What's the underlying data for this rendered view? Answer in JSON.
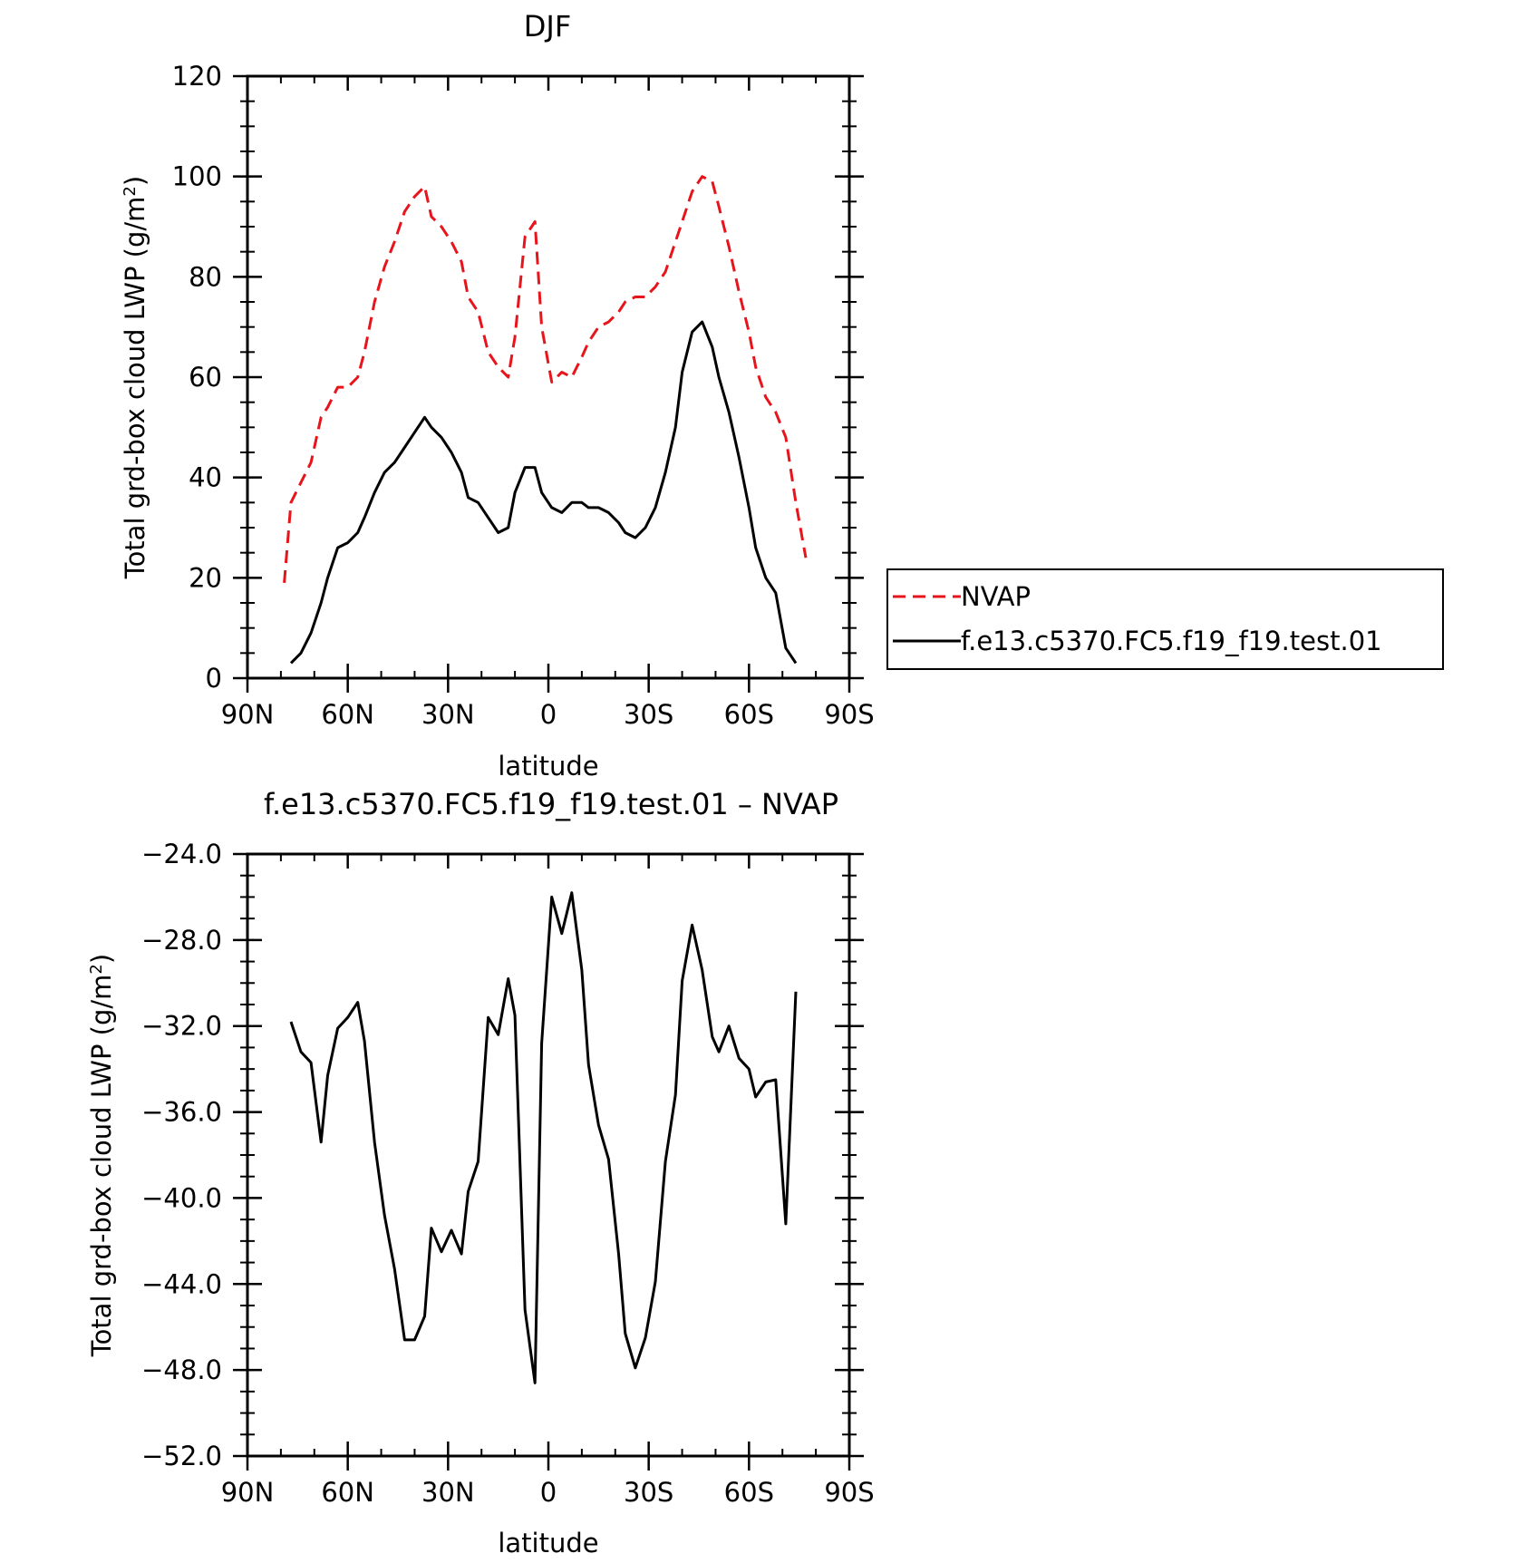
{
  "chart_data": [
    {
      "type": "line",
      "title": "DJF",
      "xlabel": "latitude",
      "ylabel": "Total grd-box cloud LWP (g/m",
      "ylabel_sup": "2",
      "ylabel_close": ")",
      "xlim": [
        -90,
        90
      ],
      "ylim": [
        0,
        120
      ],
      "x_ticks": [
        -90,
        -60,
        -30,
        0,
        30,
        60,
        90
      ],
      "x_tick_labels": [
        "90N",
        "60N",
        "30N",
        "0",
        "30S",
        "60S",
        "90S"
      ],
      "y_ticks": [
        0,
        20,
        40,
        60,
        80,
        100,
        120
      ],
      "y_tick_labels": [
        "0",
        "20",
        "40",
        "60",
        "80",
        "100",
        "120"
      ],
      "legend": "right",
      "series": [
        {
          "name": "NVAP",
          "color": "#e8141b",
          "dash": "dashed",
          "points": [
            [
              -79,
              19
            ],
            [
              -77,
              35
            ],
            [
              -74,
              39
            ],
            [
              -71,
              43
            ],
            [
              -68,
              52
            ],
            [
              -66,
              54
            ],
            [
              -63,
              58
            ],
            [
              -60,
              58
            ],
            [
              -57,
              60
            ],
            [
              -55,
              65
            ],
            [
              -52,
              75
            ],
            [
              -49,
              82
            ],
            [
              -46,
              87
            ],
            [
              -43,
              93
            ],
            [
              -40,
              96
            ],
            [
              -37,
              98
            ],
            [
              -35,
              92
            ],
            [
              -32,
              90
            ],
            [
              -29,
              87
            ],
            [
              -26,
              83
            ],
            [
              -24,
              76
            ],
            [
              -21,
              73
            ],
            [
              -18,
              65
            ],
            [
              -15,
              62
            ],
            [
              -12,
              60
            ],
            [
              -10,
              68
            ],
            [
              -7,
              88
            ],
            [
              -4,
              91
            ],
            [
              -2,
              70
            ],
            [
              1,
              59
            ],
            [
              4,
              61
            ],
            [
              7,
              60
            ],
            [
              10,
              64
            ],
            [
              12,
              67
            ],
            [
              15,
              70
            ],
            [
              18,
              71
            ],
            [
              21,
              73
            ],
            [
              23,
              75
            ],
            [
              26,
              76
            ],
            [
              29,
              76
            ],
            [
              32,
              78
            ],
            [
              35,
              81
            ],
            [
              38,
              87
            ],
            [
              40,
              91
            ],
            [
              43,
              97
            ],
            [
              46,
              100
            ],
            [
              49,
              99
            ],
            [
              51,
              94
            ],
            [
              54,
              86
            ],
            [
              57,
              77
            ],
            [
              60,
              69
            ],
            [
              62,
              62
            ],
            [
              65,
              56
            ],
            [
              68,
              53
            ],
            [
              71,
              48
            ],
            [
              74,
              35
            ],
            [
              77,
              24
            ]
          ]
        },
        {
          "name": "f.e13.c5370.FC5.f19_f19.test.01",
          "color": "#000000",
          "dash": "solid",
          "points": [
            [
              -77,
              3
            ],
            [
              -74,
              5
            ],
            [
              -71,
              9
            ],
            [
              -68,
              15
            ],
            [
              -66,
              20
            ],
            [
              -63,
              26
            ],
            [
              -60,
              27
            ],
            [
              -57,
              29
            ],
            [
              -55,
              32
            ],
            [
              -52,
              37
            ],
            [
              -49,
              41
            ],
            [
              -46,
              43
            ],
            [
              -43,
              46
            ],
            [
              -40,
              49
            ],
            [
              -37,
              52
            ],
            [
              -35,
              50
            ],
            [
              -32,
              48
            ],
            [
              -29,
              45
            ],
            [
              -26,
              41
            ],
            [
              -24,
              36
            ],
            [
              -21,
              35
            ],
            [
              -18,
              32
            ],
            [
              -15,
              29
            ],
            [
              -12,
              30
            ],
            [
              -10,
              37
            ],
            [
              -7,
              42
            ],
            [
              -4,
              42
            ],
            [
              -2,
              37
            ],
            [
              1,
              34
            ],
            [
              4,
              33
            ],
            [
              7,
              35
            ],
            [
              10,
              35
            ],
            [
              12,
              34
            ],
            [
              15,
              34
            ],
            [
              18,
              33
            ],
            [
              21,
              31
            ],
            [
              23,
              29
            ],
            [
              26,
              28
            ],
            [
              29,
              30
            ],
            [
              32,
              34
            ],
            [
              35,
              41
            ],
            [
              38,
              50
            ],
            [
              40,
              61
            ],
            [
              43,
              69
            ],
            [
              46,
              71
            ],
            [
              49,
              66
            ],
            [
              51,
              60
            ],
            [
              54,
              53
            ],
            [
              57,
              44
            ],
            [
              60,
              34
            ],
            [
              62,
              26
            ],
            [
              65,
              20
            ],
            [
              68,
              17
            ],
            [
              71,
              6
            ],
            [
              74,
              3
            ]
          ]
        }
      ]
    },
    {
      "type": "line",
      "title": "f.e13.c5370.FC5.f19_f19.test.01 – NVAP",
      "xlabel": "latitude",
      "ylabel": "Total grd-box cloud LWP (g/m",
      "ylabel_sup": "2",
      "ylabel_close": ")",
      "xlim": [
        -90,
        90
      ],
      "ylim": [
        -52,
        -24
      ],
      "x_ticks": [
        -90,
        -60,
        -30,
        0,
        30,
        60,
        90
      ],
      "x_tick_labels": [
        "90N",
        "60N",
        "30N",
        "0",
        "30S",
        "60S",
        "90S"
      ],
      "y_ticks": [
        -52,
        -48,
        -44,
        -40,
        -36,
        -32,
        -28,
        -24
      ],
      "y_tick_labels": [
        "−52.0",
        "−48.0",
        "−44.0",
        "−40.0",
        "−36.0",
        "−32.0",
        "−28.0",
        "−24.0"
      ],
      "series": [
        {
          "color": "#000000",
          "dash": "solid",
          "points": [
            [
              -77,
              -31.8
            ],
            [
              -74,
              -33.2
            ],
            [
              -71,
              -33.7
            ],
            [
              -68,
              -37.4
            ],
            [
              -66,
              -34.3
            ],
            [
              -63,
              -32.1
            ],
            [
              -60,
              -31.6
            ],
            [
              -57,
              -30.9
            ],
            [
              -55,
              -32.7
            ],
            [
              -52,
              -37.4
            ],
            [
              -49,
              -40.8
            ],
            [
              -46,
              -43.3
            ],
            [
              -43,
              -46.6
            ],
            [
              -40,
              -46.6
            ],
            [
              -37,
              -45.5
            ],
            [
              -35,
              -41.4
            ],
            [
              -32,
              -42.5
            ],
            [
              -29,
              -41.5
            ],
            [
              -26,
              -42.6
            ],
            [
              -24,
              -39.7
            ],
            [
              -21,
              -38.3
            ],
            [
              -18,
              -31.6
            ],
            [
              -15,
              -32.4
            ],
            [
              -12,
              -29.8
            ],
            [
              -10,
              -31.5
            ],
            [
              -7,
              -45.2
            ],
            [
              -4,
              -48.6
            ],
            [
              -2,
              -32.8
            ],
            [
              1,
              -26.0
            ],
            [
              4,
              -27.7
            ],
            [
              7,
              -25.8
            ],
            [
              10,
              -29.4
            ],
            [
              12,
              -33.8
            ],
            [
              15,
              -36.6
            ],
            [
              18,
              -38.2
            ],
            [
              21,
              -42.6
            ],
            [
              23,
              -46.3
            ],
            [
              26,
              -47.9
            ],
            [
              29,
              -46.5
            ],
            [
              32,
              -43.9
            ],
            [
              35,
              -38.3
            ],
            [
              38,
              -35.2
            ],
            [
              40,
              -29.9
            ],
            [
              43,
              -27.3
            ],
            [
              46,
              -29.4
            ],
            [
              49,
              -32.5
            ],
            [
              51,
              -33.2
            ],
            [
              54,
              -32.0
            ],
            [
              57,
              -33.5
            ],
            [
              60,
              -34.0
            ],
            [
              62,
              -35.3
            ],
            [
              65,
              -34.6
            ],
            [
              68,
              -34.5
            ],
            [
              71,
              -41.2
            ],
            [
              74,
              -30.4
            ]
          ]
        }
      ]
    }
  ]
}
